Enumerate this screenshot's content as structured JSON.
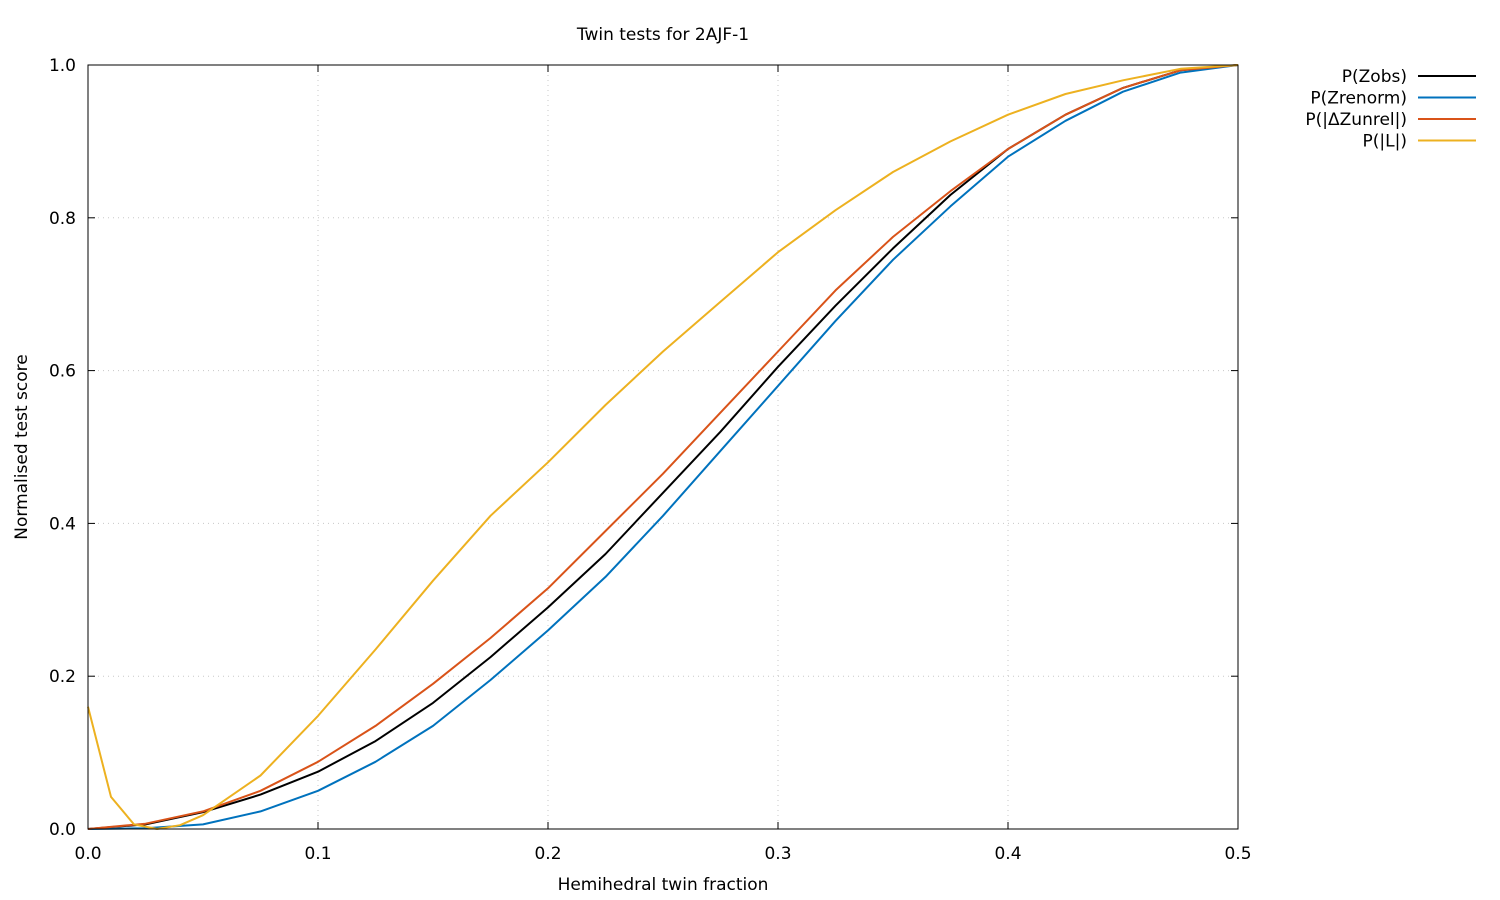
{
  "chart_data": {
    "type": "line",
    "title": "Twin tests for 2AJF-1",
    "xlabel": "Hemihedral twin fraction",
    "ylabel": "Normalised test score",
    "xlim": [
      0,
      0.5
    ],
    "ylim": [
      0,
      1
    ],
    "xticks": [
      "0.0",
      "0.1",
      "0.2",
      "0.3",
      "0.4",
      "0.5"
    ],
    "yticks": [
      "0.0",
      "0.2",
      "0.4",
      "0.6",
      "0.8",
      "1.0"
    ],
    "grid": true,
    "legend_position": "outside-top-right",
    "series": [
      {
        "name": "P(Zobs)",
        "color": "#000000",
        "x": [
          0,
          0.025,
          0.05,
          0.075,
          0.1,
          0.125,
          0.15,
          0.175,
          0.2,
          0.225,
          0.25,
          0.275,
          0.3,
          0.325,
          0.35,
          0.375,
          0.4,
          0.425,
          0.45,
          0.475,
          0.5
        ],
        "y": [
          0,
          0.006,
          0.022,
          0.045,
          0.075,
          0.115,
          0.165,
          0.225,
          0.29,
          0.36,
          0.44,
          0.52,
          0.605,
          0.685,
          0.76,
          0.83,
          0.89,
          0.935,
          0.97,
          0.993,
          1.0
        ]
      },
      {
        "name": "P(Zrenorm)",
        "color": "#0072bd",
        "x": [
          0,
          0.025,
          0.05,
          0.075,
          0.1,
          0.125,
          0.15,
          0.175,
          0.2,
          0.225,
          0.25,
          0.275,
          0.3,
          0.325,
          0.35,
          0.375,
          0.4,
          0.425,
          0.45,
          0.475,
          0.5
        ],
        "y": [
          0,
          0.001,
          0.006,
          0.023,
          0.05,
          0.088,
          0.135,
          0.195,
          0.26,
          0.33,
          0.41,
          0.495,
          0.58,
          0.665,
          0.745,
          0.815,
          0.88,
          0.927,
          0.965,
          0.99,
          1.0
        ]
      },
      {
        "name": "P(|ΔZunrel|)",
        "color": "#d95319",
        "x": [
          0,
          0.025,
          0.05,
          0.075,
          0.1,
          0.125,
          0.15,
          0.175,
          0.2,
          0.225,
          0.25,
          0.275,
          0.3,
          0.325,
          0.35,
          0.375,
          0.4,
          0.425,
          0.45,
          0.475,
          0.5
        ],
        "y": [
          0,
          0.007,
          0.023,
          0.05,
          0.088,
          0.135,
          0.19,
          0.25,
          0.315,
          0.39,
          0.465,
          0.545,
          0.625,
          0.705,
          0.775,
          0.835,
          0.89,
          0.935,
          0.97,
          0.993,
          1.0
        ]
      },
      {
        "name": "P(|L|)",
        "color": "#edb120",
        "x": [
          0,
          0.01,
          0.02,
          0.03,
          0.04,
          0.05,
          0.075,
          0.1,
          0.125,
          0.15,
          0.175,
          0.2,
          0.225,
          0.25,
          0.275,
          0.3,
          0.325,
          0.35,
          0.375,
          0.4,
          0.425,
          0.45,
          0.475,
          0.5
        ],
        "y": [
          0.16,
          0.042,
          0.006,
          0.0,
          0.005,
          0.018,
          0.07,
          0.148,
          0.235,
          0.325,
          0.41,
          0.48,
          0.555,
          0.625,
          0.69,
          0.755,
          0.81,
          0.86,
          0.9,
          0.935,
          0.962,
          0.98,
          0.995,
          1.0
        ]
      }
    ]
  }
}
